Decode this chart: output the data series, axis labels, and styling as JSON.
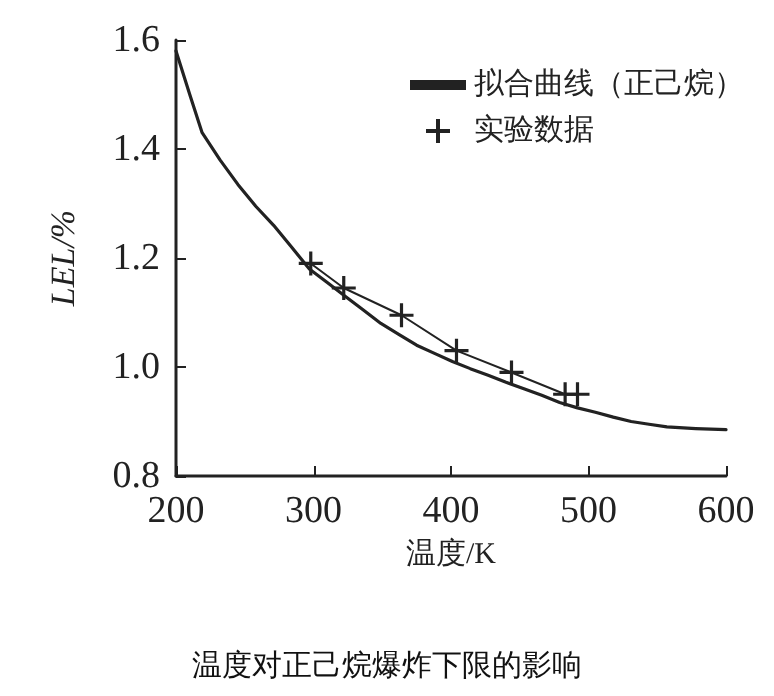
{
  "chart_data": {
    "type": "line",
    "title": "温度对正己烷爆炸下限的影响",
    "xlabel": "温度/K",
    "ylabel": "LEL/%",
    "xlim": [
      200,
      600
    ],
    "xticks": [
      200,
      300,
      400,
      500,
      600
    ],
    "ylim": [
      0.8,
      1.6
    ],
    "yticks": [
      0.8,
      {
        "value": 1,
        "label": "1.0"
      },
      1.2,
      1.4,
      1.6
    ],
    "grid": false,
    "legend": "top right",
    "series": [
      {
        "name": "拟合曲线（正己烷）",
        "color": "#222222",
        "marker": "none",
        "x": [
          200,
          210,
          219,
          232,
          245,
          258,
          271,
          284,
          297,
          310,
          323,
          336,
          349,
          362,
          375,
          388,
          401,
          414,
          427,
          440,
          453,
          466,
          479,
          492,
          505,
          518,
          531,
          544,
          557,
          578,
          600
        ],
        "values": [
          1.58,
          1.5,
          1.43,
          1.38,
          1.335,
          1.295,
          1.26,
          1.22,
          1.18,
          1.155,
          1.13,
          1.105,
          1.08,
          1.06,
          1.04,
          1.025,
          1.01,
          0.997,
          0.985,
          0.972,
          0.96,
          0.948,
          0.935,
          0.925,
          0.917,
          0.908,
          0.9,
          0.895,
          0.89,
          0.887,
          0.885
        ]
      },
      {
        "name": "实验数据",
        "color": "#222222",
        "marker": "cross",
        "x": [
          298,
          322,
          364,
          404,
          444,
          483,
          492
        ],
        "values": [
          1.19,
          1.145,
          1.095,
          1.03,
          0.99,
          0.95,
          0.95
        ]
      }
    ]
  }
}
